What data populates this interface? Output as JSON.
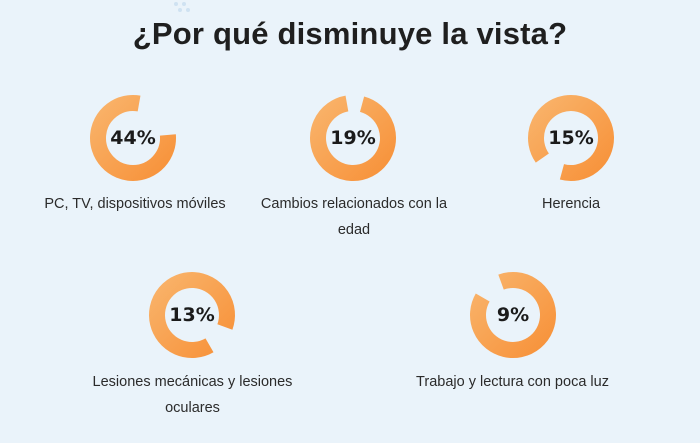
{
  "title": "¿Por qué disminuye la vista?",
  "colors": {
    "ring": "#f7923a",
    "ring_light": "#f9b36a",
    "background": "#eaf3fa"
  },
  "chart_data": {
    "type": "pie",
    "title": "¿Por qué disminuye la vista?",
    "items": [
      {
        "label": "PC, TV, dispositivos móviles",
        "value": 44,
        "display": "44%"
      },
      {
        "label": "Cambios relacionados con la edad",
        "value": 19,
        "display": "19%"
      },
      {
        "label": "Herencia",
        "value": 15,
        "display": "15%"
      },
      {
        "label": "Lesiones mecánicas y lesiones oculares",
        "value": 13,
        "display": "13%"
      },
      {
        "label": "Trabajo y lectura con poca luz",
        "value": 9,
        "display": "9%"
      }
    ]
  }
}
